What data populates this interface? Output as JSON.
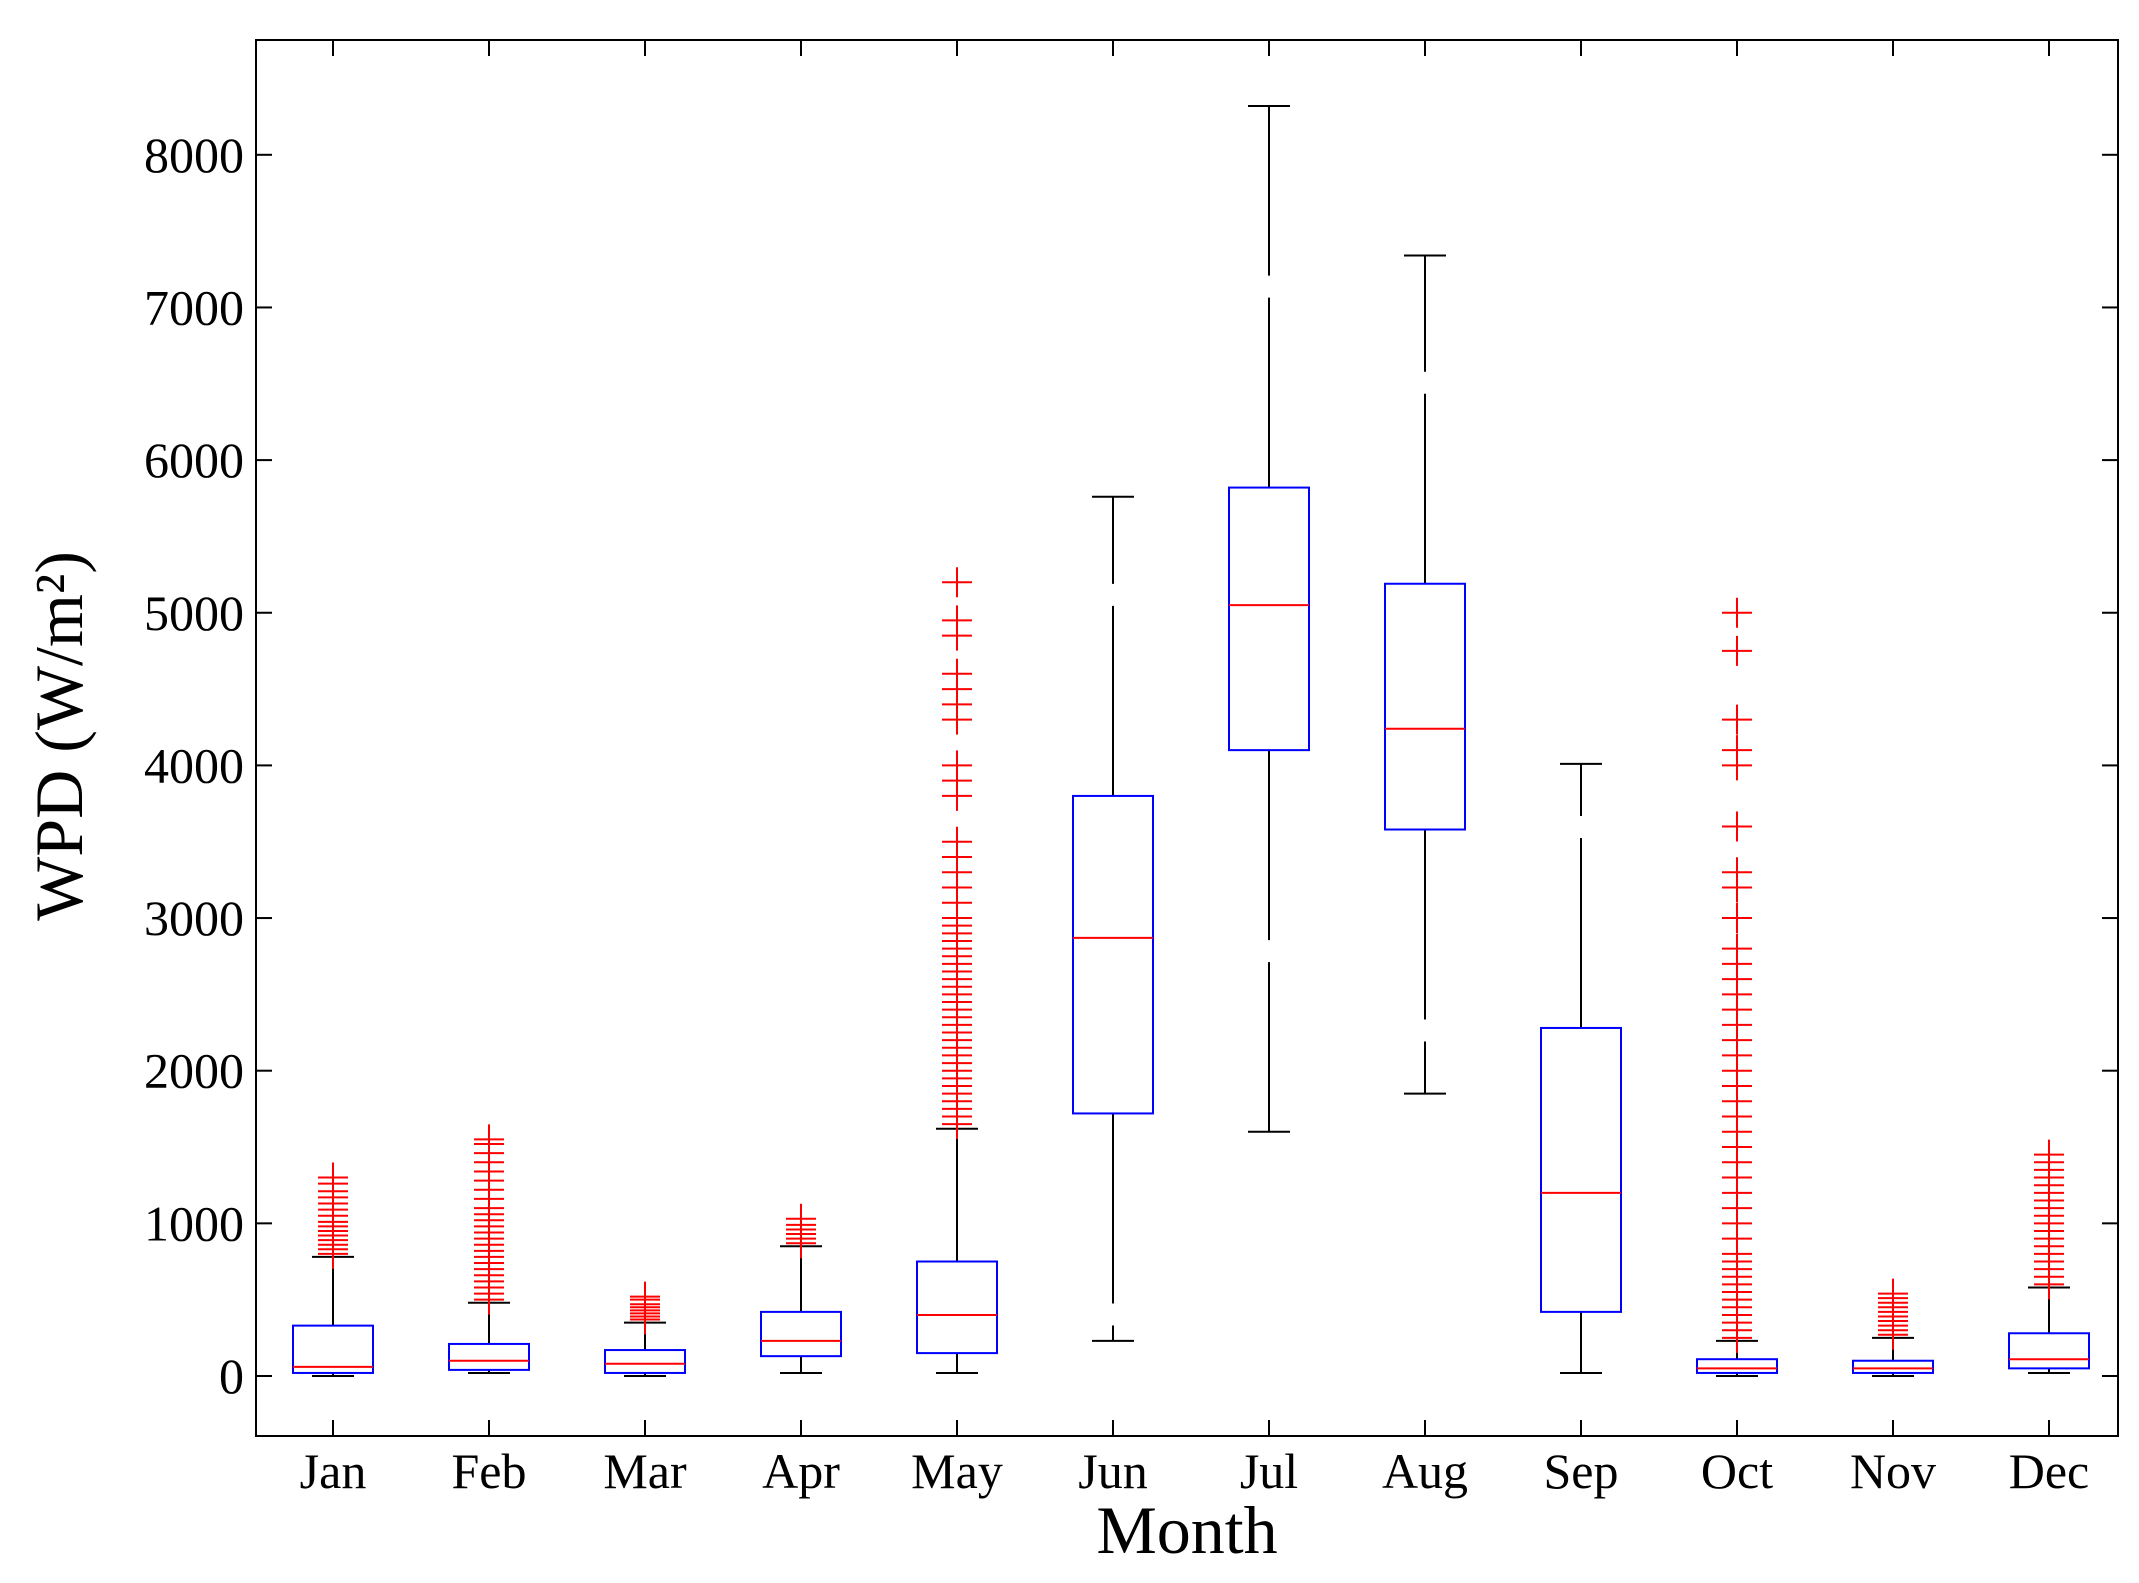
{
  "chart_data": {
    "type": "box",
    "title": "",
    "xlabel": "Month",
    "ylabel": "WPD (W/m²)",
    "categories": [
      "Jan",
      "Feb",
      "Mar",
      "Apr",
      "May",
      "Jun",
      "Jul",
      "Aug",
      "Sep",
      "Oct",
      "Nov",
      "Dec"
    ],
    "yticks": [
      0,
      1000,
      2000,
      3000,
      4000,
      5000,
      6000,
      7000,
      8000
    ],
    "ylim": [
      -400,
      8700
    ],
    "grid": false,
    "colors": {
      "box": "#0000ff",
      "median": "#ff0000",
      "whisker": "#000000",
      "outlier": "#ff0000"
    },
    "boxes": [
      {
        "month": "Jan",
        "whisker_low": 0,
        "q1": 20,
        "median": 60,
        "q3": 330,
        "whisker_high": 780,
        "outliers": [
          800,
          830,
          860,
          890,
          920,
          950,
          980,
          1010,
          1050,
          1090,
          1130,
          1170,
          1210,
          1260,
          1300
        ]
      },
      {
        "month": "Feb",
        "whisker_low": 20,
        "q1": 40,
        "median": 100,
        "q3": 210,
        "whisker_high": 480,
        "outliers": [
          500,
          540,
          580,
          620,
          660,
          700,
          740,
          780,
          820,
          860,
          900,
          940,
          980,
          1020,
          1060,
          1100,
          1160,
          1220,
          1280,
          1340,
          1400,
          1460,
          1520,
          1550
        ]
      },
      {
        "month": "Mar",
        "whisker_low": 0,
        "q1": 20,
        "median": 80,
        "q3": 170,
        "whisker_high": 350,
        "outliers": [
          370,
          390,
          410,
          430,
          450,
          470,
          500,
          520
        ]
      },
      {
        "month": "Apr",
        "whisker_low": 20,
        "q1": 130,
        "median": 230,
        "q3": 420,
        "whisker_high": 850,
        "outliers": [
          870,
          900,
          930,
          960,
          990,
          1030
        ]
      },
      {
        "month": "May",
        "whisker_low": 20,
        "q1": 150,
        "median": 400,
        "q3": 750,
        "whisker_high": 1620,
        "outliers": [
          1650,
          1700,
          1750,
          1800,
          1850,
          1900,
          1950,
          2000,
          2050,
          2100,
          2150,
          2200,
          2250,
          2300,
          2350,
          2400,
          2450,
          2500,
          2550,
          2600,
          2650,
          2700,
          2750,
          2800,
          2850,
          2900,
          2950,
          3000,
          3100,
          3200,
          3300,
          3400,
          3500,
          3800,
          3900,
          4000,
          4300,
          4400,
          4500,
          4600,
          4850,
          4950,
          5200
        ]
      },
      {
        "month": "Jun",
        "whisker_low": 230,
        "q1": 1720,
        "median": 2870,
        "q3": 3800,
        "whisker_high": 5760,
        "outliers": []
      },
      {
        "month": "Jul",
        "whisker_low": 1600,
        "q1": 4100,
        "median": 5050,
        "q3": 5820,
        "whisker_high": 8320,
        "outliers": []
      },
      {
        "month": "Aug",
        "whisker_low": 1850,
        "q1": 3580,
        "median": 4240,
        "q3": 5190,
        "whisker_high": 7340,
        "outliers": []
      },
      {
        "month": "Sep",
        "whisker_low": 20,
        "q1": 420,
        "median": 1200,
        "q3": 2280,
        "whisker_high": 4010,
        "outliers": []
      },
      {
        "month": "Oct",
        "whisker_low": 0,
        "q1": 20,
        "median": 50,
        "q3": 110,
        "whisker_high": 230,
        "outliers": [
          250,
          300,
          350,
          400,
          450,
          500,
          550,
          600,
          650,
          700,
          750,
          800,
          900,
          1000,
          1100,
          1200,
          1300,
          1400,
          1500,
          1600,
          1700,
          1800,
          1900,
          2000,
          2100,
          2200,
          2300,
          2400,
          2500,
          2600,
          2700,
          2800,
          3000,
          3200,
          3300,
          3600,
          4000,
          4100,
          4300,
          4750,
          5000
        ]
      },
      {
        "month": "Nov",
        "whisker_low": 0,
        "q1": 20,
        "median": 50,
        "q3": 100,
        "whisker_high": 250,
        "outliers": [
          270,
          300,
          330,
          360,
          390,
          420,
          450,
          480,
          510,
          540
        ]
      },
      {
        "month": "Dec",
        "whisker_low": 20,
        "q1": 50,
        "median": 110,
        "q3": 280,
        "whisker_high": 580,
        "outliers": [
          600,
          650,
          700,
          750,
          800,
          850,
          900,
          950,
          1000,
          1050,
          1100,
          1150,
          1200,
          1250,
          1300,
          1350,
          1400,
          1450
        ]
      }
    ]
  }
}
